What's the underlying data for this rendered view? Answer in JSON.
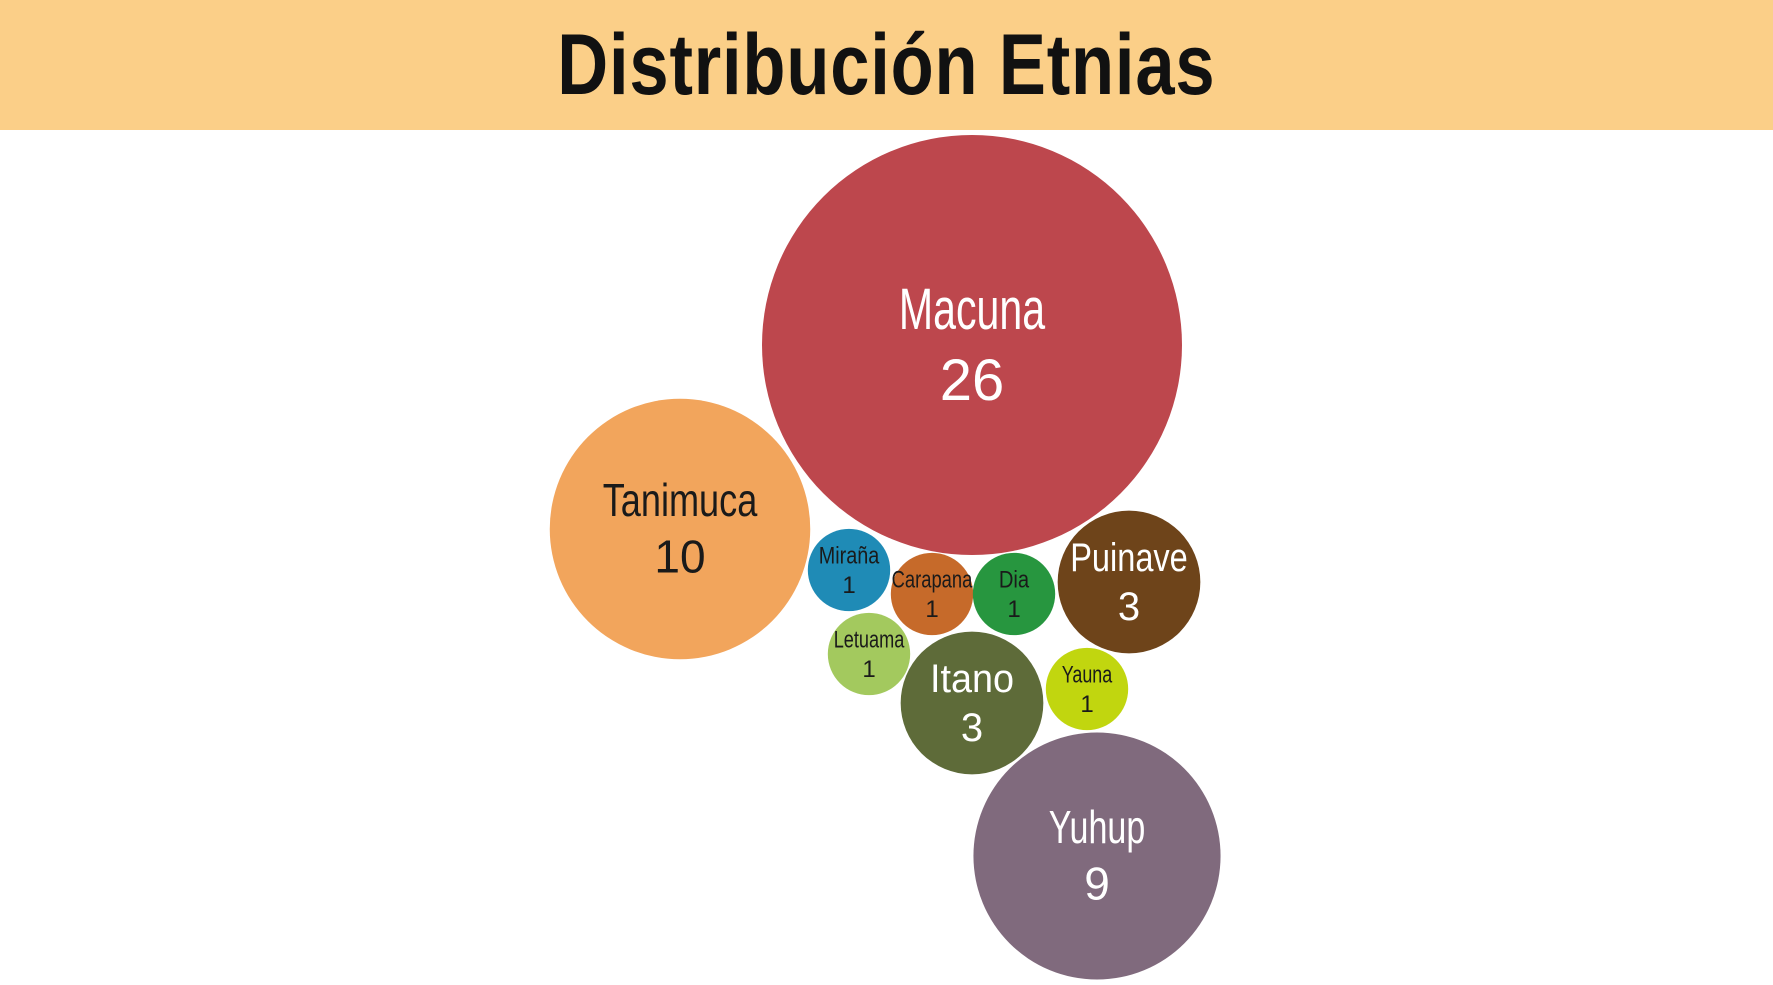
{
  "title": "Distribución Etnias",
  "colors": {
    "title_bar": "#fbcf88",
    "title_text": "#111111"
  },
  "chart_data": {
    "type": "bubble",
    "title": "Distribución Etnias",
    "series": [
      {
        "name": "Macuna",
        "value": 26,
        "color": "#bd474d",
        "label_color": "#ffffff"
      },
      {
        "name": "Tanimuca",
        "value": 10,
        "color": "#f2a55c",
        "label_color": "#1a1a1a"
      },
      {
        "name": "Yuhup",
        "value": 9,
        "color": "#806a7d",
        "label_color": "#ffffff"
      },
      {
        "name": "Puinave",
        "value": 3,
        "color": "#6e441a",
        "label_color": "#ffffff"
      },
      {
        "name": "Itano",
        "value": 3,
        "color": "#5e6b39",
        "label_color": "#ffffff"
      },
      {
        "name": "Miraña",
        "value": 1,
        "color": "#1f8bb6",
        "label_color": "#1a1a1a"
      },
      {
        "name": "Carapana",
        "value": 1,
        "color": "#c66a2a",
        "label_color": "#1a1a1a"
      },
      {
        "name": "Dia",
        "value": 1,
        "color": "#27963f",
        "label_color": "#1a1a1a"
      },
      {
        "name": "Letuama",
        "value": 1,
        "color": "#a3c95e",
        "label_color": "#1a1a1a"
      },
      {
        "name": "Yauna",
        "value": 1,
        "color": "#c1d60f",
        "label_color": "#1a1a1a"
      }
    ]
  }
}
